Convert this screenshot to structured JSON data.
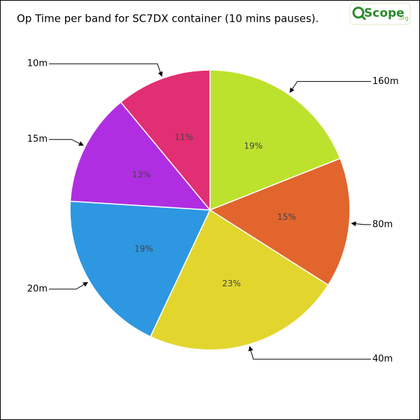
{
  "chart_data": {
    "type": "pie",
    "title": "Op Time per band for SC7DX container (10 mins pauses).",
    "logo": "Scope",
    "logo_suffix": ".org",
    "categories": [
      "160m",
      "80m",
      "40m",
      "20m",
      "15m",
      "10m"
    ],
    "values": [
      19,
      15,
      23,
      19,
      13,
      11
    ],
    "value_labels": [
      "19%",
      "15%",
      "23%",
      "19%",
      "13%",
      "11%"
    ],
    "colors": [
      "#bde22e",
      "#e2652e",
      "#e2d62e",
      "#2e97e2",
      "#b02ee2",
      "#e22e72"
    ]
  }
}
